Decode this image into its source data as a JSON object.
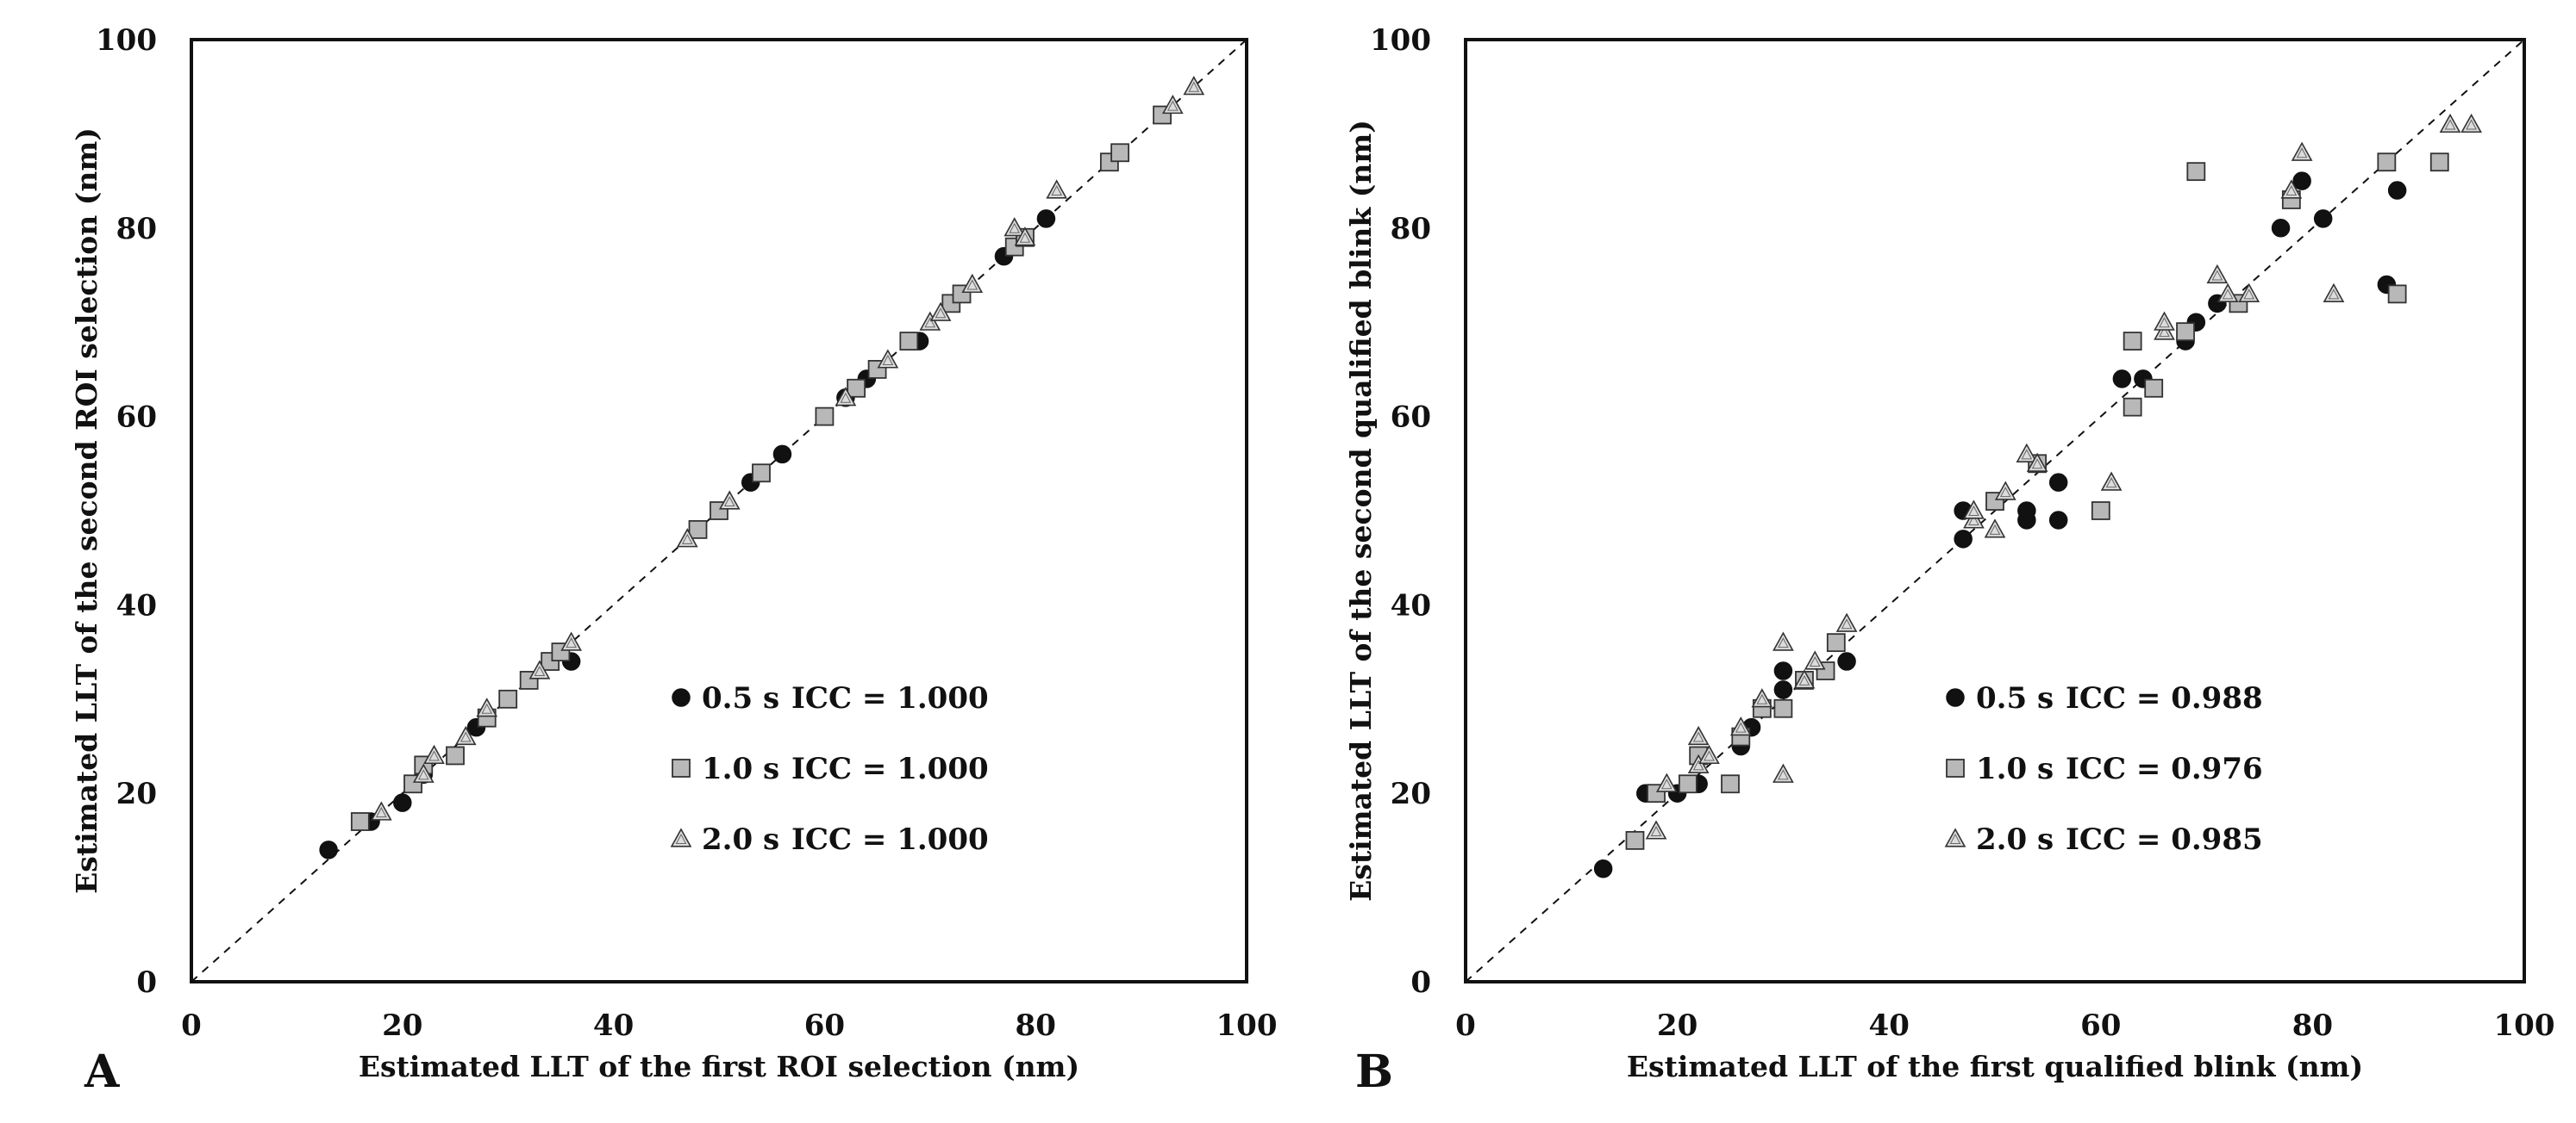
{
  "chart_data": [
    {
      "type": "scatter",
      "panel_label": "A",
      "title": "",
      "xlabel": "Estimated LLT of the first ROI selection (nm)",
      "ylabel": "Estimated LLT of the second ROI selection (nm)",
      "xlim": [
        0,
        100
      ],
      "ylim": [
        0,
        100
      ],
      "xticks": [
        "0",
        "20",
        "40",
        "60",
        "80",
        "100"
      ],
      "yticks": [
        "0",
        "20",
        "40",
        "60",
        "80",
        "100"
      ],
      "grid": false,
      "identity_line": true,
      "legend_position": "center-right",
      "series": [
        {
          "name": "0.5 s",
          "icc_label": "ICC = 1.000",
          "marker": "circle",
          "points": [
            [
              13,
              14
            ],
            [
              17,
              17
            ],
            [
              20,
              19
            ],
            [
              22,
              22
            ],
            [
              27,
              27
            ],
            [
              36,
              34
            ],
            [
              53,
              53
            ],
            [
              56,
              56
            ],
            [
              62,
              62
            ],
            [
              64,
              64
            ],
            [
              69,
              68
            ],
            [
              77,
              77
            ],
            [
              81,
              81
            ]
          ]
        },
        {
          "name": "1.0 s",
          "icc_label": "ICC = 1.000",
          "marker": "square",
          "points": [
            [
              16,
              17
            ],
            [
              21,
              21
            ],
            [
              22,
              23
            ],
            [
              25,
              24
            ],
            [
              28,
              28
            ],
            [
              30,
              30
            ],
            [
              32,
              32
            ],
            [
              34,
              34
            ],
            [
              35,
              35
            ],
            [
              48,
              48
            ],
            [
              50,
              50
            ],
            [
              54,
              54
            ],
            [
              60,
              60
            ],
            [
              63,
              63
            ],
            [
              65,
              65
            ],
            [
              68,
              68
            ],
            [
              72,
              72
            ],
            [
              73,
              73
            ],
            [
              78,
              78
            ],
            [
              79,
              79
            ],
            [
              87,
              87
            ],
            [
              88,
              88
            ],
            [
              92,
              92
            ]
          ]
        },
        {
          "name": "2.0 s",
          "icc_label": "ICC = 1.000",
          "marker": "triangle",
          "points": [
            [
              18,
              18
            ],
            [
              22,
              22
            ],
            [
              23,
              24
            ],
            [
              26,
              26
            ],
            [
              28,
              29
            ],
            [
              33,
              33
            ],
            [
              36,
              36
            ],
            [
              47,
              47
            ],
            [
              51,
              51
            ],
            [
              62,
              62
            ],
            [
              66,
              66
            ],
            [
              70,
              70
            ],
            [
              71,
              71
            ],
            [
              74,
              74
            ],
            [
              78,
              80
            ],
            [
              79,
              79
            ],
            [
              82,
              84
            ],
            [
              93,
              93
            ],
            [
              95,
              95
            ]
          ]
        }
      ]
    },
    {
      "type": "scatter",
      "panel_label": "B",
      "title": "",
      "xlabel": "Estimated LLT of the first qualified blink (nm)",
      "ylabel": "Estimated LLT of the second qualified blink (nm)",
      "xlim": [
        0,
        100
      ],
      "ylim": [
        0,
        100
      ],
      "xticks": [
        "0",
        "20",
        "40",
        "60",
        "80",
        "100"
      ],
      "yticks": [
        "0",
        "20",
        "40",
        "60",
        "80",
        "100"
      ],
      "grid": false,
      "identity_line": true,
      "legend_position": "center-right",
      "series": [
        {
          "name": "0.5 s",
          "icc_label": "ICC = 0.988",
          "marker": "circle",
          "points": [
            [
              13,
              12
            ],
            [
              17,
              20
            ],
            [
              20,
              20
            ],
            [
              22,
              21
            ],
            [
              26,
              25
            ],
            [
              27,
              27
            ],
            [
              30,
              31
            ],
            [
              30,
              33
            ],
            [
              36,
              34
            ],
            [
              47,
              47
            ],
            [
              47,
              50
            ],
            [
              53,
              49
            ],
            [
              53,
              50
            ],
            [
              56,
              49
            ],
            [
              56,
              53
            ],
            [
              62,
              64
            ],
            [
              64,
              64
            ],
            [
              68,
              68
            ],
            [
              69,
              70
            ],
            [
              71,
              72
            ],
            [
              77,
              80
            ],
            [
              79,
              85
            ],
            [
              81,
              81
            ],
            [
              87,
              74
            ],
            [
              88,
              84
            ]
          ]
        },
        {
          "name": "1.0 s",
          "icc_label": "ICC = 0.976",
          "marker": "square",
          "points": [
            [
              16,
              15
            ],
            [
              18,
              20
            ],
            [
              21,
              21
            ],
            [
              22,
              24
            ],
            [
              25,
              21
            ],
            [
              26,
              26
            ],
            [
              28,
              29
            ],
            [
              30,
              29
            ],
            [
              32,
              32
            ],
            [
              34,
              33
            ],
            [
              35,
              36
            ],
            [
              50,
              51
            ],
            [
              54,
              55
            ],
            [
              60,
              50
            ],
            [
              63,
              61
            ],
            [
              63,
              68
            ],
            [
              65,
              63
            ],
            [
              68,
              69
            ],
            [
              69,
              86
            ],
            [
              73,
              72
            ],
            [
              78,
              83
            ],
            [
              87,
              87
            ],
            [
              88,
              73
            ],
            [
              92,
              87
            ]
          ]
        },
        {
          "name": "2.0 s",
          "icc_label": "ICC = 0.985",
          "marker": "triangle",
          "points": [
            [
              18,
              16
            ],
            [
              19,
              21
            ],
            [
              22,
              23
            ],
            [
              22,
              26
            ],
            [
              23,
              24
            ],
            [
              26,
              27
            ],
            [
              28,
              30
            ],
            [
              30,
              22
            ],
            [
              30,
              36
            ],
            [
              32,
              32
            ],
            [
              33,
              34
            ],
            [
              36,
              38
            ],
            [
              48,
              49
            ],
            [
              48,
              50
            ],
            [
              50,
              48
            ],
            [
              51,
              52
            ],
            [
              53,
              56
            ],
            [
              54,
              55
            ],
            [
              61,
              53
            ],
            [
              66,
              69
            ],
            [
              66,
              70
            ],
            [
              71,
              75
            ],
            [
              72,
              73
            ],
            [
              74,
              73
            ],
            [
              78,
              84
            ],
            [
              79,
              88
            ],
            [
              82,
              73
            ],
            [
              93,
              91
            ],
            [
              95,
              91
            ]
          ]
        }
      ]
    }
  ]
}
